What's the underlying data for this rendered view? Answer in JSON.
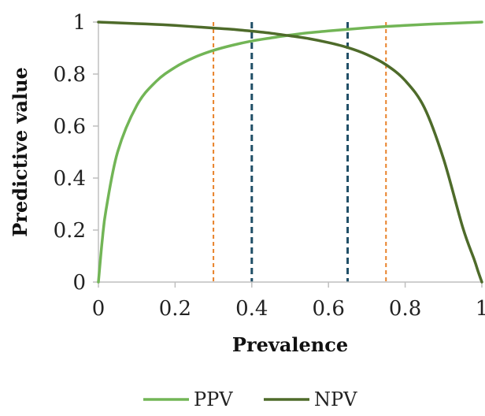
{
  "chart_data": {
    "type": "line",
    "xlabel": "Prevalence",
    "ylabel": "Predictive value",
    "xlim": [
      0,
      1
    ],
    "ylim": [
      0,
      1
    ],
    "x_ticks": [
      0,
      0.2,
      0.4,
      0.6,
      0.8,
      1
    ],
    "x_tick_labels": [
      "0",
      "0.2",
      "0.4",
      "0.6",
      "0.8",
      "1"
    ],
    "y_ticks": [
      0,
      0.2,
      0.4,
      0.6,
      0.8,
      1
    ],
    "y_tick_labels": [
      "0",
      "0.2",
      "0.4",
      "0.6",
      "0.8",
      "1"
    ],
    "grid": false,
    "legend_position": "bottom",
    "series": [
      {
        "name": "PPV",
        "color": "#72b556",
        "x": [
          0,
          0.01,
          0.02,
          0.05,
          0.1,
          0.15,
          0.2,
          0.25,
          0.3,
          0.35,
          0.4,
          0.45,
          0.5,
          0.55,
          0.6,
          0.65,
          0.7,
          0.75,
          0.8,
          0.85,
          0.9,
          0.95,
          1
        ],
        "y": [
          0,
          0.161,
          0.279,
          0.5,
          0.679,
          0.771,
          0.826,
          0.864,
          0.891,
          0.911,
          0.927,
          0.939,
          0.95,
          0.959,
          0.966,
          0.972,
          0.978,
          0.983,
          0.987,
          0.991,
          0.994,
          0.997,
          1
        ]
      },
      {
        "name": "NPV",
        "color": "#4e6b2a",
        "x": [
          0,
          0.05,
          0.1,
          0.15,
          0.2,
          0.25,
          0.3,
          0.35,
          0.4,
          0.45,
          0.5,
          0.55,
          0.6,
          0.65,
          0.7,
          0.75,
          0.8,
          0.85,
          0.9,
          0.95,
          0.98,
          0.99,
          1
        ],
        "y": [
          1,
          0.997,
          0.994,
          0.991,
          0.987,
          0.982,
          0.977,
          0.972,
          0.965,
          0.957,
          0.947,
          0.936,
          0.921,
          0.902,
          0.875,
          0.836,
          0.775,
          0.671,
          0.474,
          0.211,
          0.087,
          0.042,
          0
        ]
      }
    ],
    "reference_lines": [
      {
        "x": 0.3,
        "color": "#e8822a",
        "style": "dashed"
      },
      {
        "x": 0.4,
        "color": "#1f4e66",
        "style": "dashed"
      },
      {
        "x": 0.65,
        "color": "#1f4e66",
        "style": "dashed"
      },
      {
        "x": 0.75,
        "color": "#e8822a",
        "style": "dashed"
      }
    ]
  }
}
